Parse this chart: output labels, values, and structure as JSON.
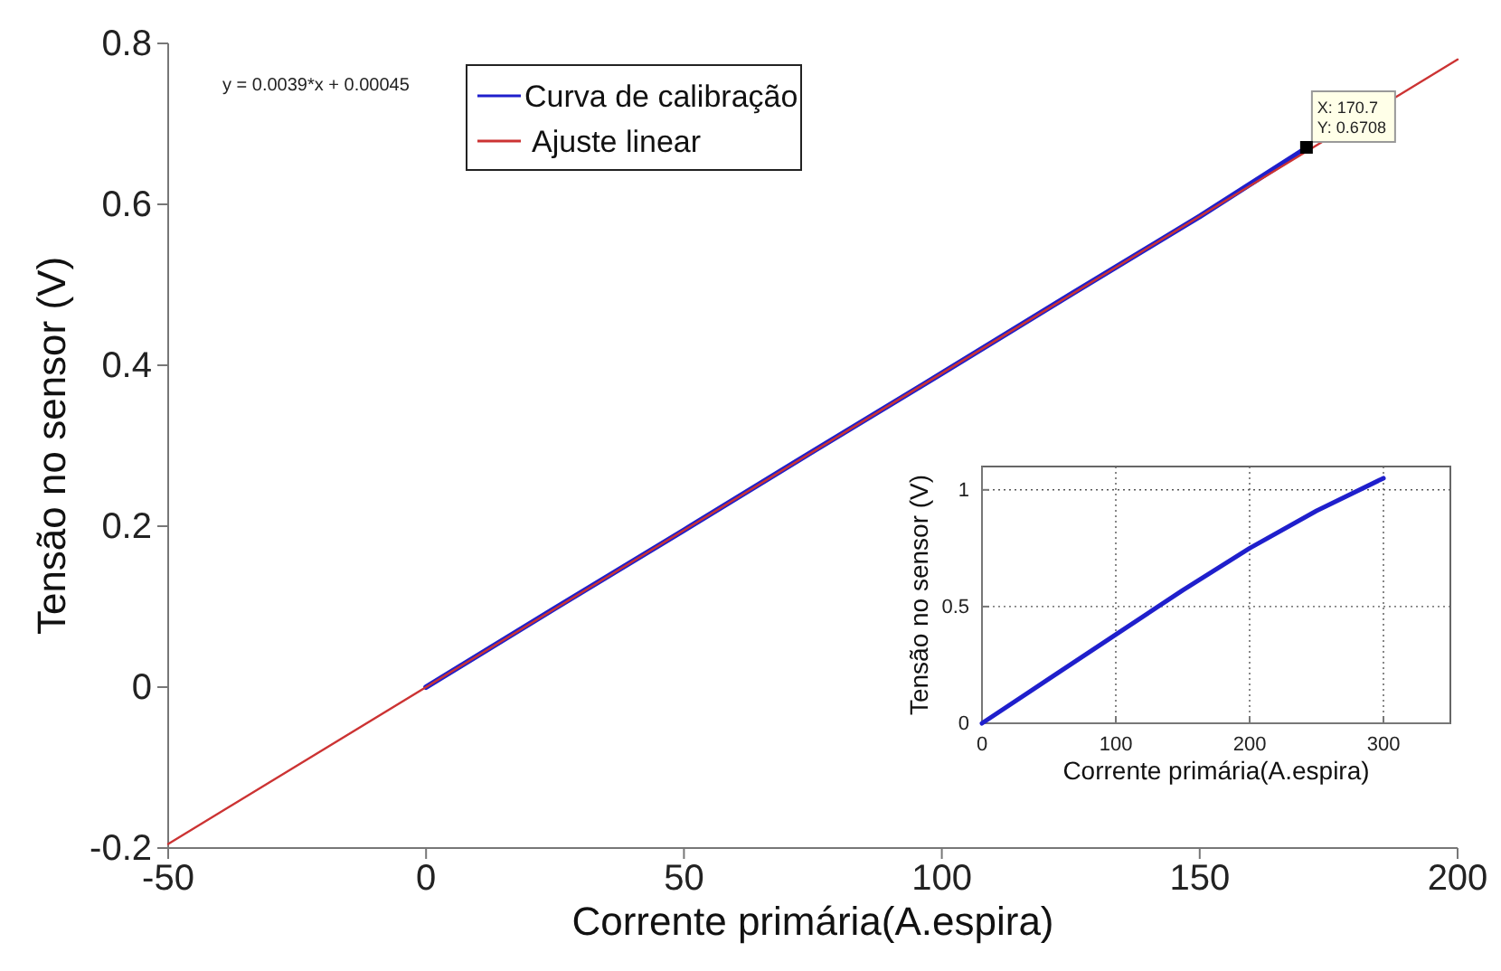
{
  "chart_data": [
    {
      "type": "line",
      "xlabel": "Corrente primária(A.espira)",
      "ylabel": "Tensão no sensor (V)",
      "xlim": [
        -50,
        200
      ],
      "ylim": [
        -0.2,
        0.8
      ],
      "xticks": [
        -50,
        0,
        50,
        100,
        150,
        200
      ],
      "yticks": [
        -0.2,
        0,
        0.2,
        0.4,
        0.6,
        0.8
      ],
      "grid": false,
      "legend": "top",
      "marker": "none",
      "line_style": "solid",
      "series": [
        {
          "name": "Curva de calibração",
          "color": "#1f1fcc",
          "x": [
            0,
            25,
            50,
            75,
            100,
            125,
            150,
            170.7
          ],
          "values": [
            0,
            0.098,
            0.195,
            0.293,
            0.39,
            0.488,
            0.585,
            0.67
          ]
        },
        {
          "name": "Ajuste linear",
          "color": "#cc3333",
          "x": [
            -50,
            200
          ],
          "values": [
            -0.195,
            0.78
          ]
        }
      ],
      "annotations": [
        "y = 0.0039*x + 0.00045",
        {
          "text": "X: 170.7",
          "x": 170.7,
          "y": 0.6708
        },
        {
          "text": "Y: 0.6708",
          "x": 170.7,
          "y": 0.6708
        }
      ]
    },
    {
      "type": "line",
      "xlabel": "Corrente primária(A.espira)",
      "ylabel": "Tensão no sensor (V)",
      "xlim": [
        0,
        350
      ],
      "ylim": [
        0,
        1.1
      ],
      "xticks": [
        0,
        100,
        200,
        300
      ],
      "yticks": [
        0,
        0.5,
        1
      ],
      "grid": true,
      "marker": "none",
      "line_style": "solid",
      "series": [
        {
          "color": "#1f1fcc",
          "x": [
            0,
            50,
            100,
            150,
            200,
            250,
            300
          ],
          "values": [
            0,
            0.19,
            0.38,
            0.57,
            0.75,
            0.91,
            1.05
          ]
        }
      ]
    }
  ]
}
